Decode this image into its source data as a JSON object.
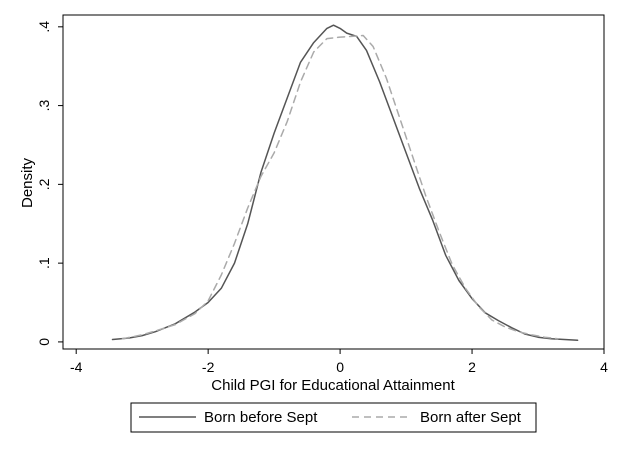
{
  "chart_data": {
    "type": "line",
    "title": "",
    "xlabel": "Child PGI for Educational Attainment",
    "ylabel": "Density",
    "xlim": [
      -4.2,
      4.0
    ],
    "ylim": [
      -0.009,
      0.415
    ],
    "x_ticks": [
      -4,
      -2,
      0,
      2,
      4
    ],
    "x_tick_labels": [
      "-4",
      "-2",
      "0",
      "2",
      "4"
    ],
    "y_ticks": [
      0,
      0.1,
      0.2,
      0.3,
      0.4
    ],
    "y_tick_labels": [
      "0",
      ".1",
      ".2",
      ".3",
      ".4"
    ],
    "grid": false,
    "legend_position": "bottom",
    "series": [
      {
        "name": "Born before Sept",
        "style": "solid",
        "color": "#555555",
        "x": [
          -3.45,
          -3.2,
          -3.0,
          -2.8,
          -2.5,
          -2.2,
          -2.0,
          -1.8,
          -1.6,
          -1.4,
          -1.2,
          -1.0,
          -0.8,
          -0.6,
          -0.4,
          -0.2,
          -0.1,
          0.0,
          0.1,
          0.25,
          0.4,
          0.6,
          0.8,
          1.0,
          1.2,
          1.4,
          1.6,
          1.8,
          2.0,
          2.2,
          2.4,
          2.6,
          2.8,
          3.0,
          3.2,
          3.4,
          3.6
        ],
        "y": [
          0.003,
          0.005,
          0.008,
          0.013,
          0.023,
          0.038,
          0.05,
          0.068,
          0.1,
          0.15,
          0.215,
          0.265,
          0.31,
          0.355,
          0.38,
          0.398,
          0.402,
          0.398,
          0.392,
          0.388,
          0.37,
          0.33,
          0.285,
          0.24,
          0.195,
          0.155,
          0.11,
          0.078,
          0.055,
          0.037,
          0.027,
          0.018,
          0.01,
          0.006,
          0.004,
          0.003,
          0.002
        ]
      },
      {
        "name": "Born after Sept",
        "style": "dashed",
        "color": "#aaaaaa",
        "x": [
          -3.3,
          -3.0,
          -2.8,
          -2.5,
          -2.2,
          -2.0,
          -1.8,
          -1.6,
          -1.4,
          -1.2,
          -1.0,
          -0.8,
          -0.6,
          -0.4,
          -0.2,
          0.0,
          0.2,
          0.35,
          0.5,
          0.7,
          0.9,
          1.1,
          1.3,
          1.5,
          1.7,
          1.9,
          2.1,
          2.3,
          2.5,
          2.7,
          2.9,
          3.1,
          3.3
        ],
        "y": [
          0.004,
          0.009,
          0.014,
          0.022,
          0.036,
          0.052,
          0.085,
          0.125,
          0.17,
          0.21,
          0.24,
          0.28,
          0.33,
          0.368,
          0.385,
          0.387,
          0.388,
          0.389,
          0.375,
          0.335,
          0.285,
          0.235,
          0.185,
          0.14,
          0.098,
          0.068,
          0.045,
          0.028,
          0.019,
          0.013,
          0.009,
          0.006,
          0.004
        ]
      }
    ]
  }
}
